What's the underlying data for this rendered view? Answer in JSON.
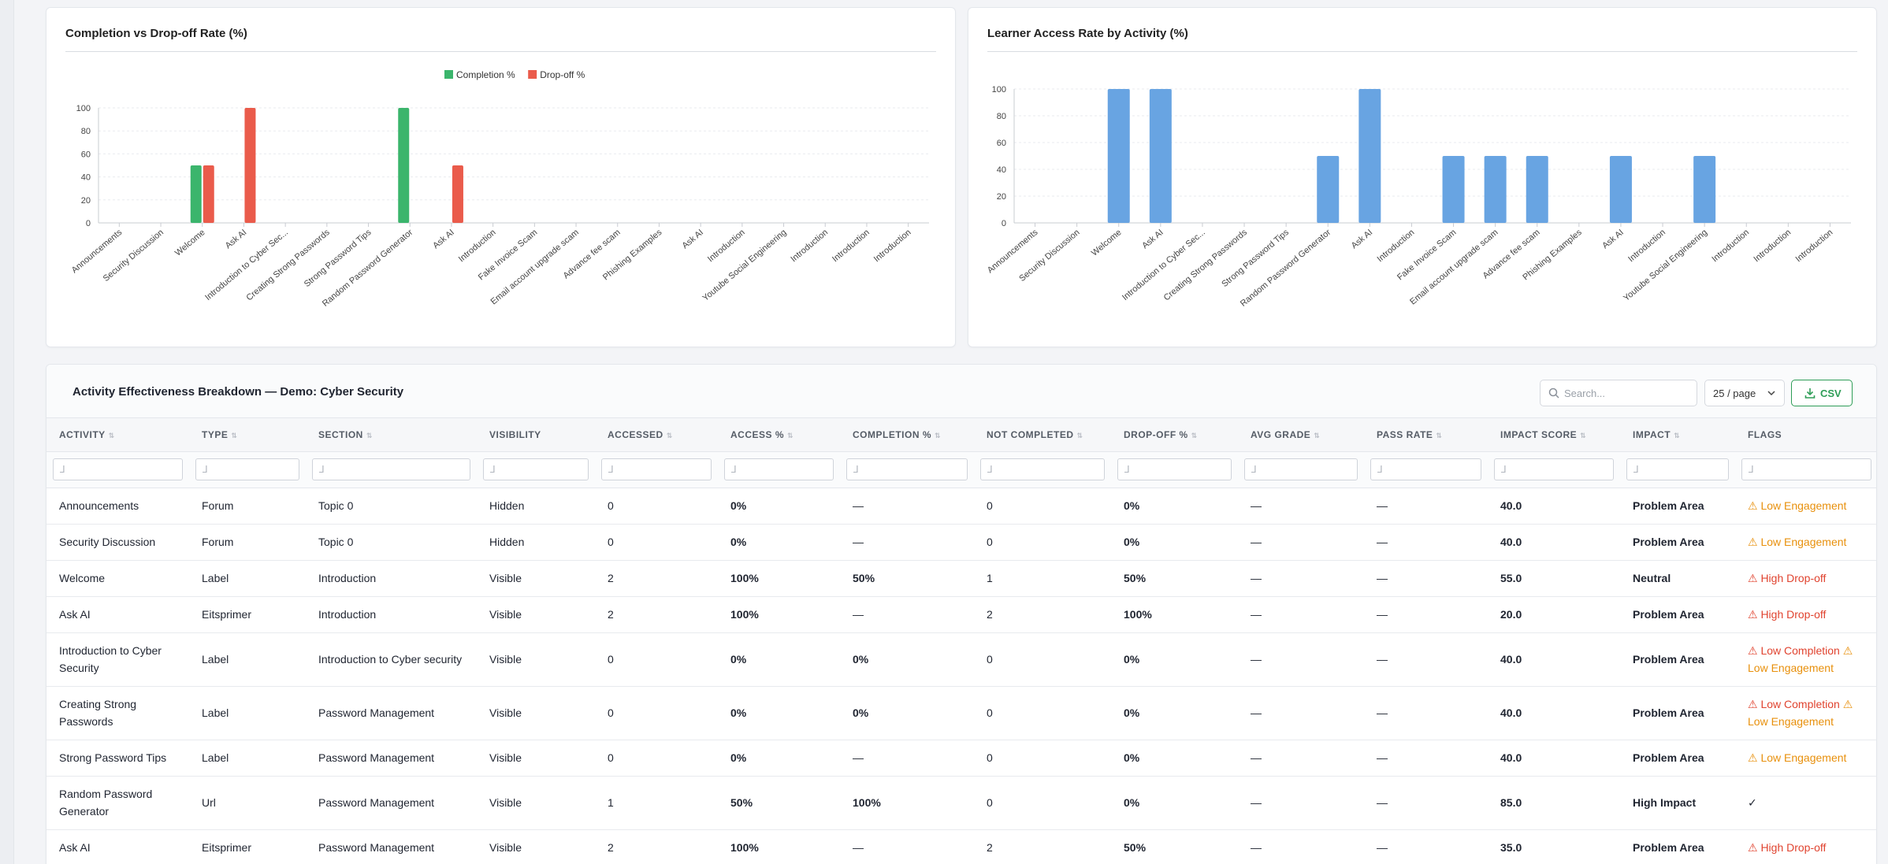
{
  "charts": {
    "completion": {
      "title": "Completion vs Drop-off Rate (%)",
      "legend": [
        "Completion %",
        "Drop-off %"
      ],
      "colors": {
        "completion": "#3bb56c",
        "dropoff": "#ea5b4b"
      }
    },
    "access": {
      "title": "Learner Access Rate by Activity (%)",
      "color": "#68a4e2"
    }
  },
  "chart_data": [
    {
      "type": "bar",
      "title": "Completion vs Drop-off Rate (%)",
      "categories": [
        "Announcements",
        "Security Discussion",
        "Welcome",
        "Ask AI",
        "Introduction to Cyber Sec...",
        "Creating Strong Passwords",
        "Strong Password Tips",
        "Random Password Generator",
        "Ask AI",
        "Introduction",
        "Fake Invoice Scam",
        "Email account upgrade scam",
        "Advance fee scam",
        "Phishing Examples",
        "Ask AI",
        "Introduction",
        "Youtube Social Engineering",
        "Introduction",
        "Introduction",
        "Introduction"
      ],
      "series": [
        {
          "name": "Completion %",
          "values": [
            0,
            0,
            50,
            0,
            0,
            0,
            0,
            100,
            0,
            0,
            0,
            0,
            0,
            0,
            0,
            0,
            0,
            0,
            0,
            0
          ]
        },
        {
          "name": "Drop-off %",
          "values": [
            0,
            0,
            50,
            100,
            0,
            0,
            0,
            0,
            50,
            0,
            0,
            0,
            0,
            0,
            0,
            0,
            0,
            0,
            0,
            0
          ]
        }
      ],
      "yticks": [
        0,
        20,
        40,
        60,
        80,
        100
      ],
      "ylim": [
        0,
        100
      ],
      "legend_position": "top-center",
      "grid": true
    },
    {
      "type": "bar",
      "title": "Learner Access Rate by Activity (%)",
      "categories": [
        "Announcements",
        "Security Discussion",
        "Welcome",
        "Ask AI",
        "Introduction to Cyber Sec...",
        "Creating Strong Passwords",
        "Strong Password Tips",
        "Random Password Generator",
        "Ask AI",
        "Introduction",
        "Fake Invoice Scam",
        "Email account upgrade scam",
        "Advance fee scam",
        "Phishing Examples",
        "Ask AI",
        "Introduction",
        "Youtube Social Engineering",
        "Introduction",
        "Introduction",
        "Introduction"
      ],
      "series": [
        {
          "values": [
            0,
            0,
            100,
            100,
            0,
            0,
            0,
            50,
            100,
            0,
            50,
            50,
            50,
            0,
            50,
            0,
            50,
            0,
            0,
            0
          ]
        }
      ],
      "yticks": [
        0,
        20,
        40,
        60,
        80,
        100
      ],
      "ylim": [
        0,
        100
      ],
      "grid": true
    }
  ],
  "table": {
    "title": "Activity Effectiveness Breakdown — Demo: Cyber Security",
    "search_placeholder": "Search...",
    "per_page": "25 / page",
    "csv_label": "CSV",
    "filter_placeholder": "⅃",
    "columns": [
      "ACTIVITY",
      "TYPE",
      "SECTION",
      "VISIBILITY",
      "ACCESSED",
      "ACCESS %",
      "COMPLETION %",
      "NOT COMPLETED",
      "DROP-OFF %",
      "AVG GRADE",
      "PASS RATE",
      "IMPACT SCORE",
      "IMPACT",
      "FLAGS"
    ],
    "sortable": [
      true,
      true,
      true,
      false,
      true,
      true,
      true,
      true,
      true,
      true,
      true,
      true,
      true,
      false
    ],
    "rows": [
      {
        "activity": "Announcements",
        "type": "Forum",
        "section": "Topic 0",
        "visibility": "Hidden",
        "accessed": "0",
        "access_pct": "0%",
        "completion_pct": "—",
        "not_completed": "0",
        "dropoff_pct": "0%",
        "avg_grade": "—",
        "pass_rate": "—",
        "impact_score": "40.0",
        "impact": "Problem Area",
        "flags": [
          {
            "text": "⚠ Low Engagement",
            "tone": "orange"
          }
        ]
      },
      {
        "activity": "Security Discussion",
        "type": "Forum",
        "section": "Topic 0",
        "visibility": "Hidden",
        "accessed": "0",
        "access_pct": "0%",
        "completion_pct": "—",
        "not_completed": "0",
        "dropoff_pct": "0%",
        "avg_grade": "—",
        "pass_rate": "—",
        "impact_score": "40.0",
        "impact": "Problem Area",
        "flags": [
          {
            "text": "⚠ Low Engagement",
            "tone": "orange"
          }
        ]
      },
      {
        "activity": "Welcome",
        "type": "Label",
        "section": "Introduction",
        "visibility": "Visible",
        "accessed": "2",
        "access_pct": "100%",
        "completion_pct": "50%",
        "not_completed": "1",
        "dropoff_pct": "50%",
        "avg_grade": "—",
        "pass_rate": "—",
        "impact_score": "55.0",
        "impact": "Neutral",
        "flags": [
          {
            "text": "⚠ High Drop-off",
            "tone": "red"
          }
        ]
      },
      {
        "activity": "Ask AI",
        "type": "Eitsprimer",
        "section": "Introduction",
        "visibility": "Visible",
        "accessed": "2",
        "access_pct": "100%",
        "completion_pct": "—",
        "not_completed": "2",
        "dropoff_pct": "100%",
        "avg_grade": "—",
        "pass_rate": "—",
        "impact_score": "20.0",
        "impact": "Problem Area",
        "flags": [
          {
            "text": "⚠ High Drop-off",
            "tone": "red"
          }
        ]
      },
      {
        "activity": "Introduction to Cyber Security",
        "type": "Label",
        "section": "Introduction to Cyber security",
        "visibility": "Visible",
        "accessed": "0",
        "access_pct": "0%",
        "completion_pct": "0%",
        "not_completed": "0",
        "dropoff_pct": "0%",
        "avg_grade": "—",
        "pass_rate": "—",
        "impact_score": "40.0",
        "impact": "Problem Area",
        "flags": [
          {
            "text": "⚠ Low Completion",
            "tone": "red"
          },
          {
            "text": "⚠ Low Engagement",
            "tone": "orange"
          }
        ]
      },
      {
        "activity": "Creating Strong Passwords",
        "type": "Label",
        "section": "Password Management",
        "visibility": "Visible",
        "accessed": "0",
        "access_pct": "0%",
        "completion_pct": "0%",
        "not_completed": "0",
        "dropoff_pct": "0%",
        "avg_grade": "—",
        "pass_rate": "—",
        "impact_score": "40.0",
        "impact": "Problem Area",
        "flags": [
          {
            "text": "⚠ Low Completion",
            "tone": "red"
          },
          {
            "text": "⚠ Low Engagement",
            "tone": "orange"
          }
        ]
      },
      {
        "activity": "Strong Password Tips",
        "type": "Label",
        "section": "Password Management",
        "visibility": "Visible",
        "accessed": "0",
        "access_pct": "0%",
        "completion_pct": "—",
        "not_completed": "0",
        "dropoff_pct": "0%",
        "avg_grade": "—",
        "pass_rate": "—",
        "impact_score": "40.0",
        "impact": "Problem Area",
        "flags": [
          {
            "text": "⚠ Low Engagement",
            "tone": "orange"
          }
        ]
      },
      {
        "activity": "Random Password Generator",
        "type": "Url",
        "section": "Password Management",
        "visibility": "Visible",
        "accessed": "1",
        "access_pct": "50%",
        "completion_pct": "100%",
        "not_completed": "0",
        "dropoff_pct": "0%",
        "avg_grade": "—",
        "pass_rate": "—",
        "impact_score": "85.0",
        "impact": "High Impact",
        "flags": [
          {
            "text": "✓",
            "tone": "plain"
          }
        ]
      },
      {
        "activity": "Ask AI",
        "type": "Eitsprimer",
        "section": "Password Management",
        "visibility": "Visible",
        "accessed": "2",
        "access_pct": "100%",
        "completion_pct": "—",
        "not_completed": "2",
        "dropoff_pct": "50%",
        "avg_grade": "—",
        "pass_rate": "—",
        "impact_score": "35.0",
        "impact": "Problem Area",
        "flags": [
          {
            "text": "⚠ High Drop-off",
            "tone": "red"
          }
        ]
      }
    ]
  }
}
